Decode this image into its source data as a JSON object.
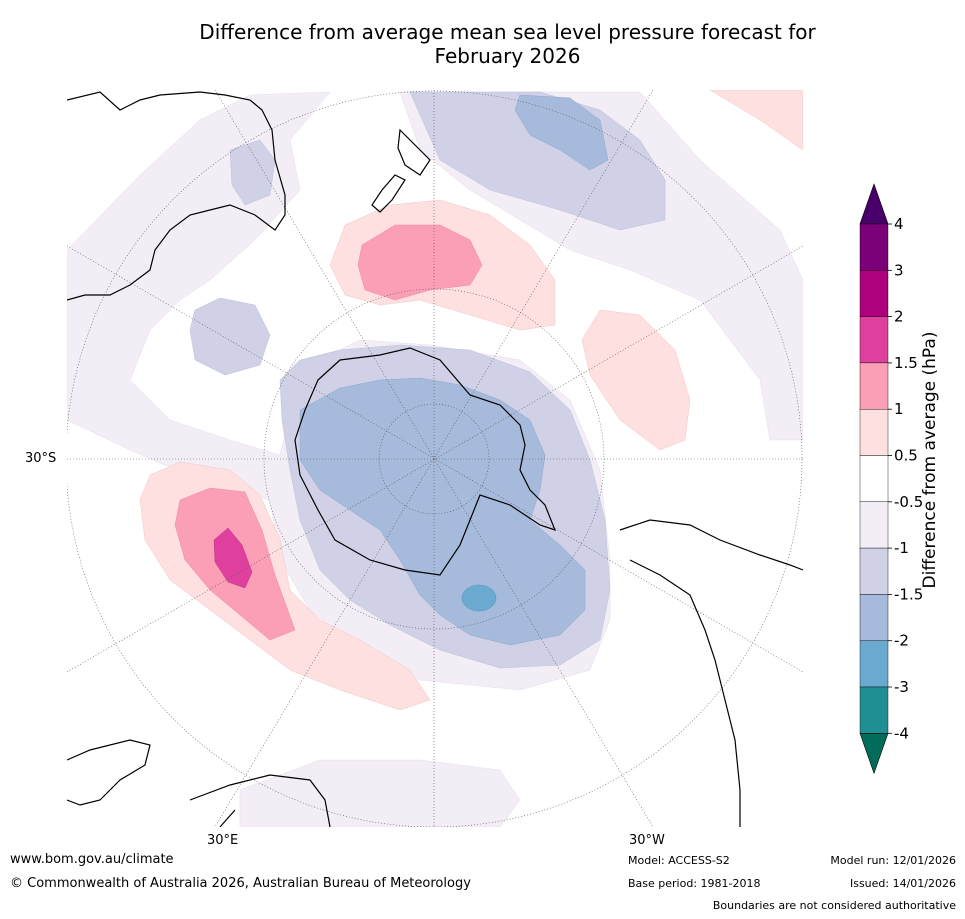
{
  "title": {
    "line1": "Difference from average mean sea level pressure forecast for",
    "line2": "February 2026"
  },
  "map": {
    "projection": "south-polar-stereographic",
    "longitude_labels": [
      "30°S",
      "30°E",
      "30°W"
    ],
    "colors": {
      "land_outline": "#000000",
      "graticule": "#555555",
      "background": "#ffffff"
    }
  },
  "colorbar": {
    "title": "Difference from average (hPa)",
    "levels": [
      "-4",
      "-3",
      "-2",
      "-1.5",
      "-1",
      "-0.5",
      "0.5",
      "1",
      "1.5",
      "2",
      "3",
      "4"
    ],
    "bins": [
      {
        "from": "-4",
        "to": "-3",
        "color": "#1f8f93"
      },
      {
        "from": "-3",
        "to": "-2",
        "color": "#6aaad0"
      },
      {
        "from": "-2",
        "to": "-1.5",
        "color": "#a6badb"
      },
      {
        "from": "-1.5",
        "to": "-1",
        "color": "#d0d1e6"
      },
      {
        "from": "-1",
        "to": "-0.5",
        "color": "#f3edf6"
      },
      {
        "from": "-0.5",
        "to": "0.5",
        "color": "#ffffff"
      },
      {
        "from": "0.5",
        "to": "1",
        "color": "#fde0df"
      },
      {
        "from": "1",
        "to": "1.5",
        "color": "#fa9fb5"
      },
      {
        "from": "1.5",
        "to": "2",
        "color": "#e0409d"
      },
      {
        "from": "2",
        "to": "3",
        "color": "#ae017e"
      },
      {
        "from": "3",
        "to": "4",
        "color": "#7a0177"
      }
    ],
    "over_color": "#49006a",
    "under_color": "#016c59"
  },
  "footer": {
    "website": "www.bom.gov.au/climate",
    "copyright": "© Commonwealth of Australia 2026, Australian Bureau of Meteorology",
    "model": "Model: ACCESS-S2",
    "base_period": "Base period: 1981-2018",
    "model_run": "Model run: 12/01/2026",
    "issued": "Issued: 14/01/2026",
    "disclaimer": "Boundaries are not considered authoritative"
  }
}
